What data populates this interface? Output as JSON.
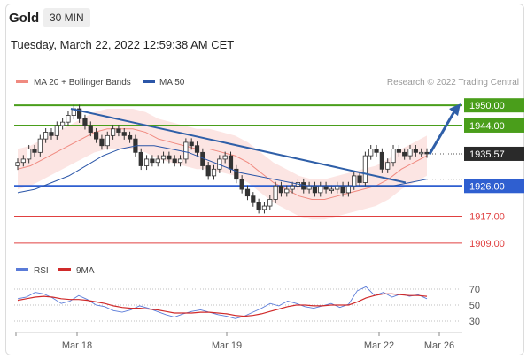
{
  "header": {
    "instrument": "Gold",
    "timeframe": "30 MIN",
    "timestamp": "Tuesday, March 22, 2022 12:59:38 AM CET"
  },
  "legend": {
    "ma_bb_label": "MA 20 + Bollinger Bands",
    "ma50_label": "MA 50",
    "credit": "Research © 2022 Trading Central",
    "rsi_label": "RSI",
    "ma9_label": "9MA"
  },
  "colors": {
    "bollinger": "#f08a80",
    "ma50": "#2b56a8",
    "resistance": "#4a9e1b",
    "support": "#2f5fd0",
    "target": "#e04040",
    "candle": "#333333",
    "rsi": "#5a7bd8",
    "rsi_ma": "#d02a2a",
    "arrow": "#2f5fa8",
    "current": "#2a2a2a"
  },
  "chart_data": [
    {
      "type": "candlestick",
      "x_labels": [
        "Mar 18",
        "Mar 19",
        "Mar 22",
        "Mar 26"
      ],
      "ylim": [
        1905,
        1954
      ],
      "current_price": "1935.57",
      "levels": [
        {
          "value": 1950.0,
          "label": "1950.00",
          "kind": "resistance"
        },
        {
          "value": 1944.0,
          "label": "1944.00",
          "kind": "resistance"
        },
        {
          "value": 1926.0,
          "label": "1926.00",
          "kind": "support"
        },
        {
          "value": 1917.0,
          "label": "1917.00",
          "kind": "target"
        },
        {
          "value": 1909.0,
          "label": "1909.00",
          "kind": "target"
        }
      ],
      "close_series": [
        1933,
        1934,
        1937,
        1936,
        1940,
        1942,
        1941,
        1944,
        1945,
        1947,
        1949,
        1946,
        1944,
        1942,
        1940,
        1938,
        1941,
        1943,
        1942,
        1941,
        1940,
        1936,
        1932,
        1934,
        1933,
        1934,
        1935,
        1934,
        1933,
        1934,
        1939,
        1938,
        1936,
        1932,
        1929,
        1931,
        1934,
        1935,
        1931,
        1928,
        1925,
        1923,
        1921,
        1919,
        1920,
        1922,
        1926,
        1924,
        1925,
        1926,
        1927,
        1925,
        1926,
        1924,
        1926,
        1925,
        1925,
        1926,
        1924,
        1926,
        1929,
        1927,
        1935,
        1937,
        1936,
        1931,
        1933,
        1937,
        1936,
        1935,
        1937,
        1936,
        1936,
        1935.57
      ],
      "ma20": [
        1931,
        1932,
        1934,
        1936,
        1938,
        1940,
        1942,
        1943,
        1943,
        1943,
        1942,
        1940,
        1939,
        1938,
        1937,
        1937,
        1936,
        1935,
        1933,
        1930,
        1927,
        1925,
        1923,
        1922,
        1922,
        1923,
        1924,
        1925,
        1926,
        1928,
        1931,
        1933,
        1935
      ],
      "ma50": [
        1924,
        1925,
        1927,
        1929,
        1932,
        1935,
        1937,
        1938,
        1938,
        1937,
        1936,
        1934,
        1932,
        1930,
        1929,
        1928,
        1927,
        1926,
        1926,
        1926,
        1926,
        1926,
        1926,
        1927,
        1928
      ],
      "trendline": [
        [
          0,
          1949
        ],
        [
          1,
          1927
        ]
      ],
      "rsi": {
        "ticks": [
          "70",
          "50",
          "30"
        ],
        "values": [
          58,
          60,
          66,
          64,
          59,
          52,
          55,
          62,
          57,
          50,
          48,
          43,
          41,
          44,
          49,
          46,
          42,
          38,
          35,
          39,
          42,
          44,
          41,
          38,
          36,
          33,
          36,
          41,
          46,
          52,
          49,
          55,
          52,
          48,
          46,
          49,
          52,
          47,
          51,
          68,
          73,
          62,
          66,
          60,
          64,
          61,
          63,
          58
        ],
        "ma9": [
          56,
          58,
          60,
          61,
          60,
          58,
          57,
          57,
          56,
          54,
          52,
          49,
          47,
          46,
          46,
          45,
          44,
          42,
          40,
          40,
          40,
          41,
          41,
          40,
          39,
          37,
          36,
          37,
          39,
          42,
          45,
          48,
          50,
          50,
          49,
          49,
          50,
          50,
          50,
          54,
          59,
          62,
          64,
          64,
          63,
          62,
          62,
          61
        ]
      }
    }
  ]
}
